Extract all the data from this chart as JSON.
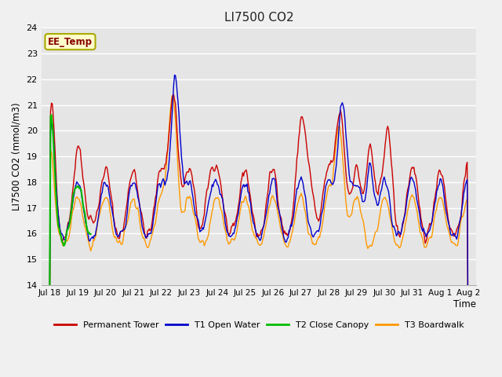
{
  "title": "LI7500 CO2",
  "ylabel": "LI7500 CO2 (mmol/m3)",
  "xlabel": "Time",
  "ylim": [
    14.0,
    24.0
  ],
  "yticks": [
    14.0,
    15.0,
    16.0,
    17.0,
    18.0,
    19.0,
    20.0,
    21.0,
    22.0,
    23.0,
    24.0
  ],
  "bg_color": "#e5e5e5",
  "fig_color": "#f0f0f0",
  "grid_color": "#ffffff",
  "annotation_text": "EE_Temp",
  "annotation_bg": "#ffffcc",
  "annotation_border": "#aaa800",
  "annotation_text_color": "#880000",
  "series_colors": {
    "Permanent Tower": "#cc0000",
    "T1 Open Water": "#0000cc",
    "T2 Close Canopy": "#00bb00",
    "T3 Boardwalk": "#ff9900"
  },
  "x_tick_labels": [
    "Jul 18",
    "Jul 19",
    "Jul 20",
    "Jul 21",
    "Jul 22",
    "Jul 23",
    "Jul 24",
    "Jul 25",
    "Jul 26",
    "Jul 27",
    "Jul 28",
    "Jul 29",
    "Jul 30",
    "Jul 31",
    "Aug 1",
    "Aug 2"
  ],
  "n_points": 480,
  "seed": 42
}
